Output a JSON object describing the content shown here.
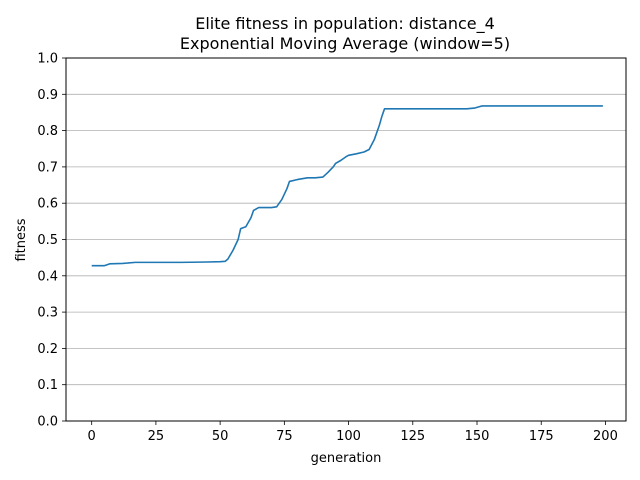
{
  "chart_data": {
    "type": "line",
    "title": "Elite fitness in population: distance_4",
    "subtitle": "Exponential Moving Average (window=5)",
    "xlabel": "generation",
    "ylabel": "fitness",
    "xlim": [
      -10,
      208
    ],
    "ylim": [
      0,
      1.0
    ],
    "xticks": [
      0,
      25,
      50,
      75,
      100,
      125,
      150,
      175,
      200
    ],
    "yticks": [
      0.0,
      0.1,
      0.2,
      0.3,
      0.4,
      0.5,
      0.6,
      0.7,
      0.8,
      0.9,
      1.0
    ],
    "xtick_labels": [
      "0",
      "25",
      "50",
      "75",
      "100",
      "125",
      "150",
      "175",
      "200"
    ],
    "ytick_labels": [
      "0.0",
      "0.1",
      "0.2",
      "0.3",
      "0.4",
      "0.5",
      "0.6",
      "0.7",
      "0.8",
      "0.9",
      "1.0"
    ],
    "grid": "horizontal",
    "line_color": "#1f77b4",
    "series": [
      {
        "x": [
          0,
          5,
          7,
          12,
          17,
          25,
          35,
          45,
          50,
          52,
          53,
          55,
          57,
          58,
          60,
          62,
          63,
          65,
          68,
          70,
          72,
          74,
          76,
          77,
          80,
          84,
          87,
          90,
          92,
          94,
          95,
          97,
          99,
          100,
          103,
          106,
          108,
          110,
          112,
          113,
          114,
          120,
          130,
          140,
          146,
          149,
          151,
          152,
          160,
          170,
          180,
          190,
          199
        ],
        "y": [
          0.428,
          0.428,
          0.433,
          0.434,
          0.437,
          0.437,
          0.437,
          0.438,
          0.439,
          0.44,
          0.446,
          0.47,
          0.5,
          0.53,
          0.535,
          0.56,
          0.58,
          0.588,
          0.588,
          0.588,
          0.59,
          0.61,
          0.64,
          0.66,
          0.665,
          0.67,
          0.67,
          0.672,
          0.685,
          0.7,
          0.71,
          0.718,
          0.728,
          0.732,
          0.736,
          0.741,
          0.748,
          0.775,
          0.815,
          0.84,
          0.86,
          0.86,
          0.86,
          0.86,
          0.86,
          0.862,
          0.866,
          0.868,
          0.868,
          0.868,
          0.868,
          0.868,
          0.868
        ]
      }
    ]
  }
}
